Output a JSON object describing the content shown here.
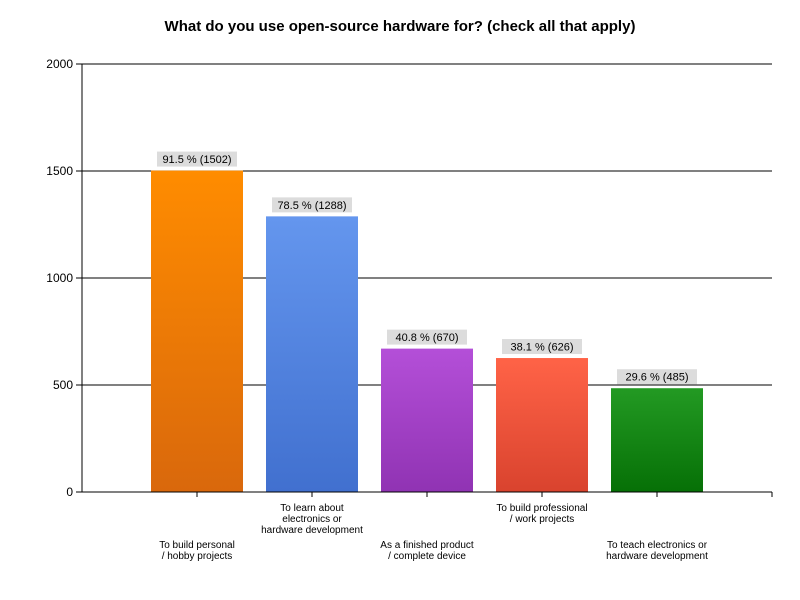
{
  "chart_data": {
    "type": "bar",
    "title": "What do you use open-source hardware for? (check all that apply)",
    "categories": [
      "To build personal / hobby projects",
      "To learn about electronics or hardware development",
      "As a finished product / complete device",
      "To build professional / work projects",
      "To teach electronics or hardware development"
    ],
    "category_label_lines": [
      [
        "To build personal",
        "/ hobby projects"
      ],
      [
        "To learn about",
        "electronics or",
        "hardware development"
      ],
      [
        "As a finished product",
        "/ complete device"
      ],
      [
        "To build professional",
        "/ work projects"
      ],
      [
        "To teach electronics or",
        "hardware development"
      ]
    ],
    "values": [
      1502,
      1288,
      670,
      626,
      485
    ],
    "data_labels": [
      "91.5 % (1502)",
      "78.5 % (1288)",
      "40.8 % (670)",
      "38.1 % (626)",
      "29.6 % (485)"
    ],
    "bar_colors": [
      [
        "#ff8c00",
        "#d9680c"
      ],
      [
        "#6496ee",
        "#4170cf"
      ],
      [
        "#b44fd8",
        "#9033b3"
      ],
      [
        "#ff6347",
        "#d9432e"
      ],
      [
        "#239a23",
        "#067006"
      ]
    ],
    "ylim": [
      0,
      2000
    ],
    "yticks": [
      0,
      500,
      1000,
      1500,
      2000
    ],
    "xlabel": "",
    "ylabel": "",
    "grid": true,
    "legend": "none"
  }
}
